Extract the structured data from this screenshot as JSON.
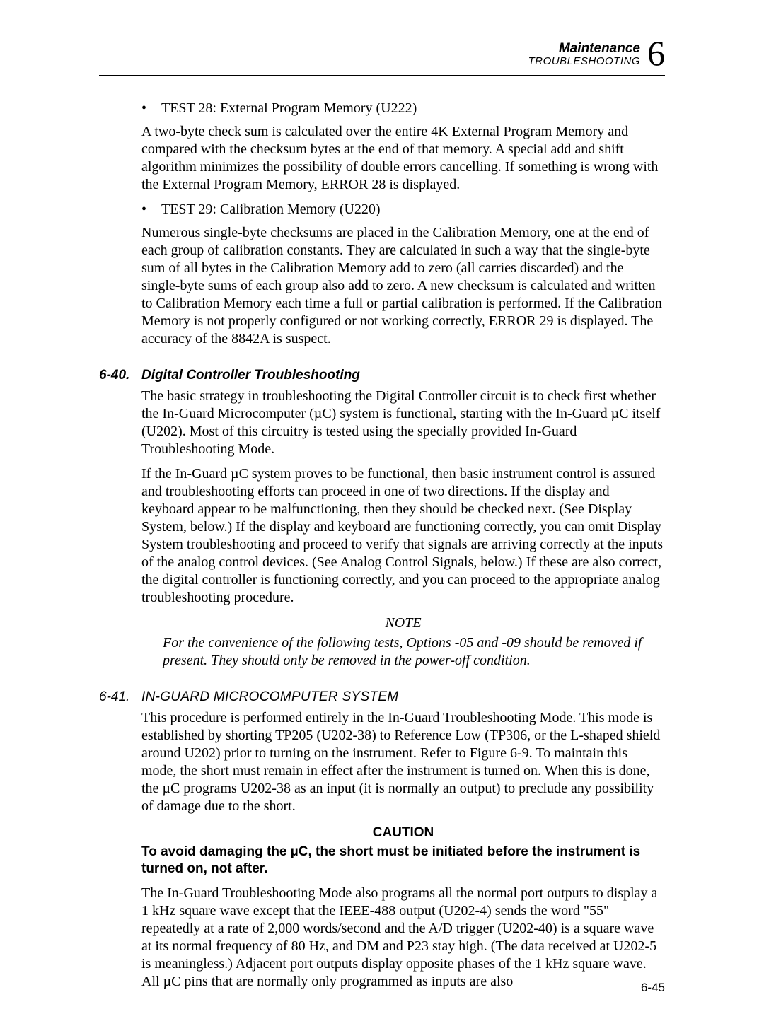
{
  "header": {
    "maintenance": "Maintenance",
    "troubleshooting": "TROUBLESHOOTING",
    "chapter_number": "6"
  },
  "body": {
    "test28_item": "TEST 28: External Program Memory (U222)",
    "test28_para": "A two-byte check sum is calculated over the entire 4K External Program Memory and compared with the checksum bytes at the end of that memory. A special add and shift algorithm minimizes the possibility of double errors cancelling. If something is wrong with the External Program Memory, ERROR 28 is displayed.",
    "test29_item": "TEST 29: Calibration Memory (U220)",
    "test29_para": "Numerous single-byte checksums are placed in the Calibration Memory, one at the end of each group of calibration constants. They are calculated in such a way that the single-byte sum of all bytes in the Calibration Memory add to zero (all carries discarded) and the single-byte sums of each group also add to zero. A new checksum is calculated and written to Calibration Memory each time a full or partial calibration is performed. If the Calibration Memory is not properly configured or not working correctly, ERROR 29 is displayed. The accuracy of the 8842A is suspect."
  },
  "sec640": {
    "num": "6-40.",
    "title": "Digital Controller Troubleshooting",
    "p1": "The basic strategy in troubleshooting the Digital Controller circuit is to check first whether the In-Guard Microcomputer (µC) system is functional, starting with the In-Guard µC itself (U202). Most of this circuitry is tested using the specially provided In-Guard Troubleshooting Mode.",
    "p2": "If the In-Guard µC system proves to be functional, then basic instrument control is assured and troubleshooting efforts can proceed in one of two directions. If the display and keyboard appear to be malfunctioning, then they should be checked next. (See Display System, below.) If the display and keyboard are functioning correctly, you can omit Display System troubleshooting and proceed to verify that signals are arriving correctly at the inputs of the analog control devices. (See Analog Control Signals, below.) If these are also correct, the digital controller is functioning correctly, and you can proceed to the appropriate analog troubleshooting procedure.",
    "note_label": "NOTE",
    "note_body": "For the convenience of the following tests, Options -05 and -09 should be removed if present. They should only be removed in the power-off condition."
  },
  "sec641": {
    "num": "6-41.",
    "title": "IN-GUARD MICROCOMPUTER SYSTEM",
    "p1": "This procedure is performed entirely in the In-Guard Troubleshooting Mode. This mode is established by shorting TP205 (U202-38) to Reference Low (TP306, or the L-shaped shield around U202) prior to turning on the instrument. Refer to Figure 6-9. To maintain this mode, the short must remain in effect after the instrument is turned on. When this is done, the µC programs U202-38 as an input (it is normally an output) to preclude any possibility of damage due to the short.",
    "caution_label": "CAUTION",
    "caution_body": "To avoid damaging the µC, the short must be initiated before the instrument is turned on, not after.",
    "p2": "The In-Guard Troubleshooting Mode also programs all the normal port outputs to display a 1 kHz square wave except that the IEEE-488 output (U202-4) sends the word \"55\" repeatedly at a rate of 2,000 words/second and the A/D trigger (U202-40) is a square wave at its normal frequency of 80 Hz, and DM and P23 stay high. (The data received at U202-5 is meaningless.) Adjacent port outputs display opposite phases of the 1 kHz square wave. All µC pins that are normally only programmed as inputs are also"
  },
  "footer": {
    "page_number": "6-45"
  }
}
